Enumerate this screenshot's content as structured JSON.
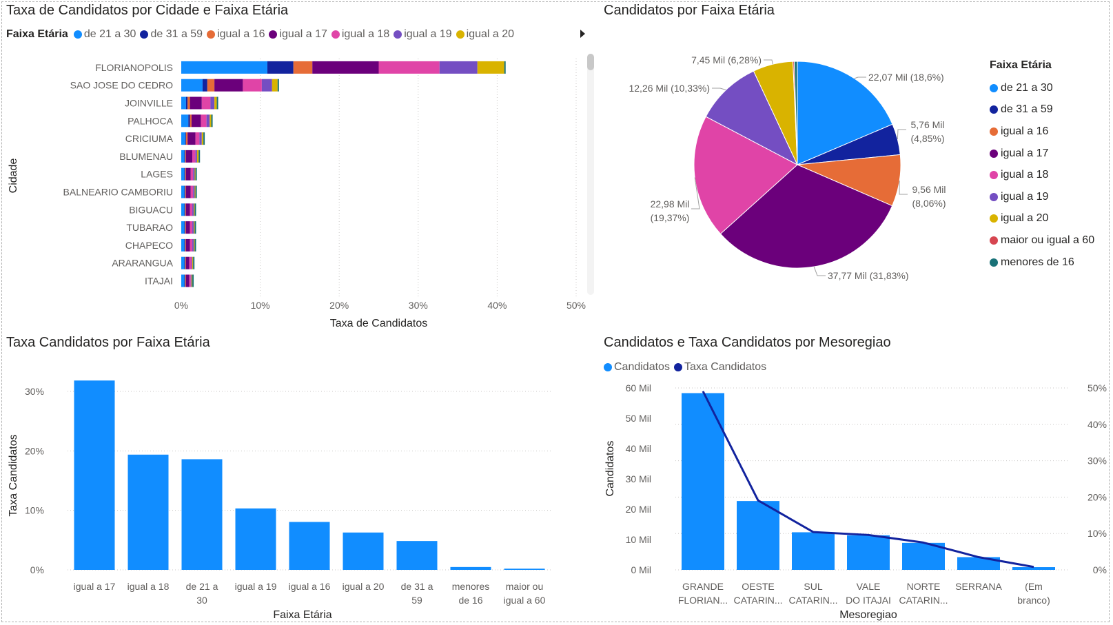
{
  "colors": {
    "de 21 a 30": "#118DFF",
    "de 31 a 59": "#12239E",
    "igual a 16": "#E66C37",
    "igual a 17": "#6B007B",
    "igual a 18": "#E044A7",
    "igual a 19": "#744EC2",
    "igual a 20": "#D9B300",
    "maior ou igual a 60": "#D64550",
    "menores de 16": "#197278",
    "line": "#12239E",
    "grid": "#c8c6c4"
  },
  "panel1": {
    "title": "Taxa de Candidatos por Cidade e Faixa Etária",
    "legend_title": "Faixa Etária",
    "legend": [
      "de 21 a 30",
      "de 31 a 59",
      "igual a 16",
      "igual a 17",
      "igual a 18",
      "igual a 19",
      "igual a 20"
    ]
  },
  "panel2": {
    "title": "Candidatos por Faixa Etária",
    "legend_title": "Faixa Etária",
    "legend": [
      "de 21 a 30",
      "de 31 a 59",
      "igual a 16",
      "igual a 17",
      "igual a 18",
      "igual a 19",
      "igual a 20",
      "maior ou igual a 60",
      "menores de 16"
    ]
  },
  "panel3": {
    "title": "Taxa Candidatos por Faixa Etária"
  },
  "panel4": {
    "title": "Candidatos e Taxa Candidatos por Mesoregiao",
    "legend": [
      "Candidatos",
      "Taxa Candidatos"
    ]
  },
  "chart_data": [
    {
      "type": "bar",
      "orientation": "horizontal",
      "stacked": true,
      "title": "Taxa de Candidatos por Cidade e Faixa Etária",
      "xlabel": "Taxa de Candidatos",
      "ylabel": "Cidade",
      "xlim": [
        0,
        50
      ],
      "x_ticks": [
        "0%",
        "10%",
        "20%",
        "30%",
        "40%",
        "50%"
      ],
      "categories": [
        "FLORIANOPOLIS",
        "SAO JOSE DO CEDRO",
        "JOINVILLE",
        "PALHOCA",
        "CRICIUMA",
        "BLUMENAU",
        "LAGES",
        "BALNEARIO CAMBORIU",
        "BIGUACU",
        "TUBARAO",
        "CHAPECO",
        "ARARANGUA",
        "ITAJAI"
      ],
      "series": [
        {
          "name": "de 21 a 30",
          "values": [
            10.9,
            2.7,
            0.6,
            0.9,
            0.5,
            0.4,
            0.4,
            0.4,
            0.4,
            0.4,
            0.4,
            0.4,
            0.4
          ]
        },
        {
          "name": "de 31 a 59",
          "values": [
            3.3,
            0.6,
            0.2,
            0.2,
            0.1,
            0.1,
            0.1,
            0.1,
            0.1,
            0.1,
            0.1,
            0.1,
            0.1
          ]
        },
        {
          "name": "igual a 16",
          "values": [
            2.4,
            0.9,
            0.3,
            0.2,
            0.2,
            0.1,
            0.1,
            0.1,
            0.1,
            0.1,
            0.1,
            0.1,
            0.1
          ]
        },
        {
          "name": "igual a 17",
          "values": [
            8.4,
            3.6,
            1.5,
            1.2,
            1.0,
            0.8,
            0.6,
            0.6,
            0.5,
            0.5,
            0.5,
            0.4,
            0.4
          ]
        },
        {
          "name": "igual a 18",
          "values": [
            7.7,
            2.4,
            1.1,
            0.7,
            0.5,
            0.4,
            0.3,
            0.3,
            0.3,
            0.3,
            0.3,
            0.3,
            0.2
          ]
        },
        {
          "name": "igual a 19",
          "values": [
            4.8,
            1.3,
            0.5,
            0.4,
            0.3,
            0.2,
            0.2,
            0.2,
            0.2,
            0.2,
            0.2,
            0.1,
            0.1
          ]
        },
        {
          "name": "igual a 20",
          "values": [
            3.4,
            0.7,
            0.3,
            0.2,
            0.2,
            0.2,
            0.1,
            0.1,
            0.1,
            0.1,
            0.1,
            0.1,
            0.1
          ]
        }
      ]
    },
    {
      "type": "pie",
      "title": "Candidatos por Faixa Etária",
      "slices": [
        {
          "name": "de 21 a 30",
          "label": "22,07 Mil (18,6%)",
          "percent": 18.6
        },
        {
          "name": "de 31 a 59",
          "label": "5,76 Mil (4,85%)",
          "percent": 4.85
        },
        {
          "name": "igual a 16",
          "label": "9,56 Mil (8,06%)",
          "percent": 8.06
        },
        {
          "name": "igual a 17",
          "label": "37,77 Mil (31,83%)",
          "percent": 31.83
        },
        {
          "name": "igual a 18",
          "label": "22,98 Mil (19,37%)",
          "percent": 19.37
        },
        {
          "name": "igual a 19",
          "label": "12,26 Mil (10,33%)",
          "percent": 10.33
        },
        {
          "name": "igual a 20",
          "label": "7,45 Mil (6,28%)",
          "percent": 6.28
        },
        {
          "name": "maior ou igual a 60",
          "label": "",
          "percent": 0.2
        },
        {
          "name": "menores de 16",
          "label": "",
          "percent": 0.48
        }
      ],
      "legend_position": "right"
    },
    {
      "type": "bar",
      "title": "Taxa Candidatos por Faixa Etária",
      "xlabel": "Faixa Etária",
      "ylabel": "Taxa Candidatos",
      "ylim": [
        0,
        30
      ],
      "y_ticks": [
        "0%",
        "10%",
        "20%",
        "30%"
      ],
      "categories": [
        "igual a 17",
        "igual a 18",
        "de 21 a 30",
        "igual a 19",
        "igual a 16",
        "igual a 20",
        "de 31 a 59",
        "menores de 16",
        "maior ou igual a 60"
      ],
      "values": [
        31.83,
        19.37,
        18.6,
        10.33,
        8.06,
        6.28,
        4.85,
        0.48,
        0.2
      ]
    },
    {
      "type": "bar",
      "title": "Candidatos e Taxa Candidatos por Mesoregiao",
      "xlabel": "Mesoregiao",
      "ylabel": "Candidatos",
      "categories": [
        "GRANDE FLORIAN...",
        "OESTE CATARIN...",
        "SUL CATARIN...",
        "VALE DO ITAJAI",
        "NORTE CATARIN...",
        "SERRANA",
        "(Em branco)"
      ],
      "ylim": [
        0,
        60
      ],
      "y_ticks": [
        "0 Mil",
        "10 Mil",
        "20 Mil",
        "30 Mil",
        "40 Mil",
        "50 Mil",
        "60 Mil"
      ],
      "y2lim": [
        0,
        50
      ],
      "y2_ticks": [
        "0%",
        "10%",
        "20%",
        "30%",
        "40%",
        "50%"
      ],
      "series": [
        {
          "name": "Candidatos",
          "type": "bar",
          "values": [
            58.3,
            22.7,
            12.4,
            11.4,
            8.9,
            4.2,
            0.9
          ]
        },
        {
          "name": "Taxa Candidatos",
          "type": "line",
          "values": [
            49.1,
            19.1,
            10.4,
            9.6,
            7.5,
            3.5,
            0.8
          ]
        }
      ]
    }
  ]
}
